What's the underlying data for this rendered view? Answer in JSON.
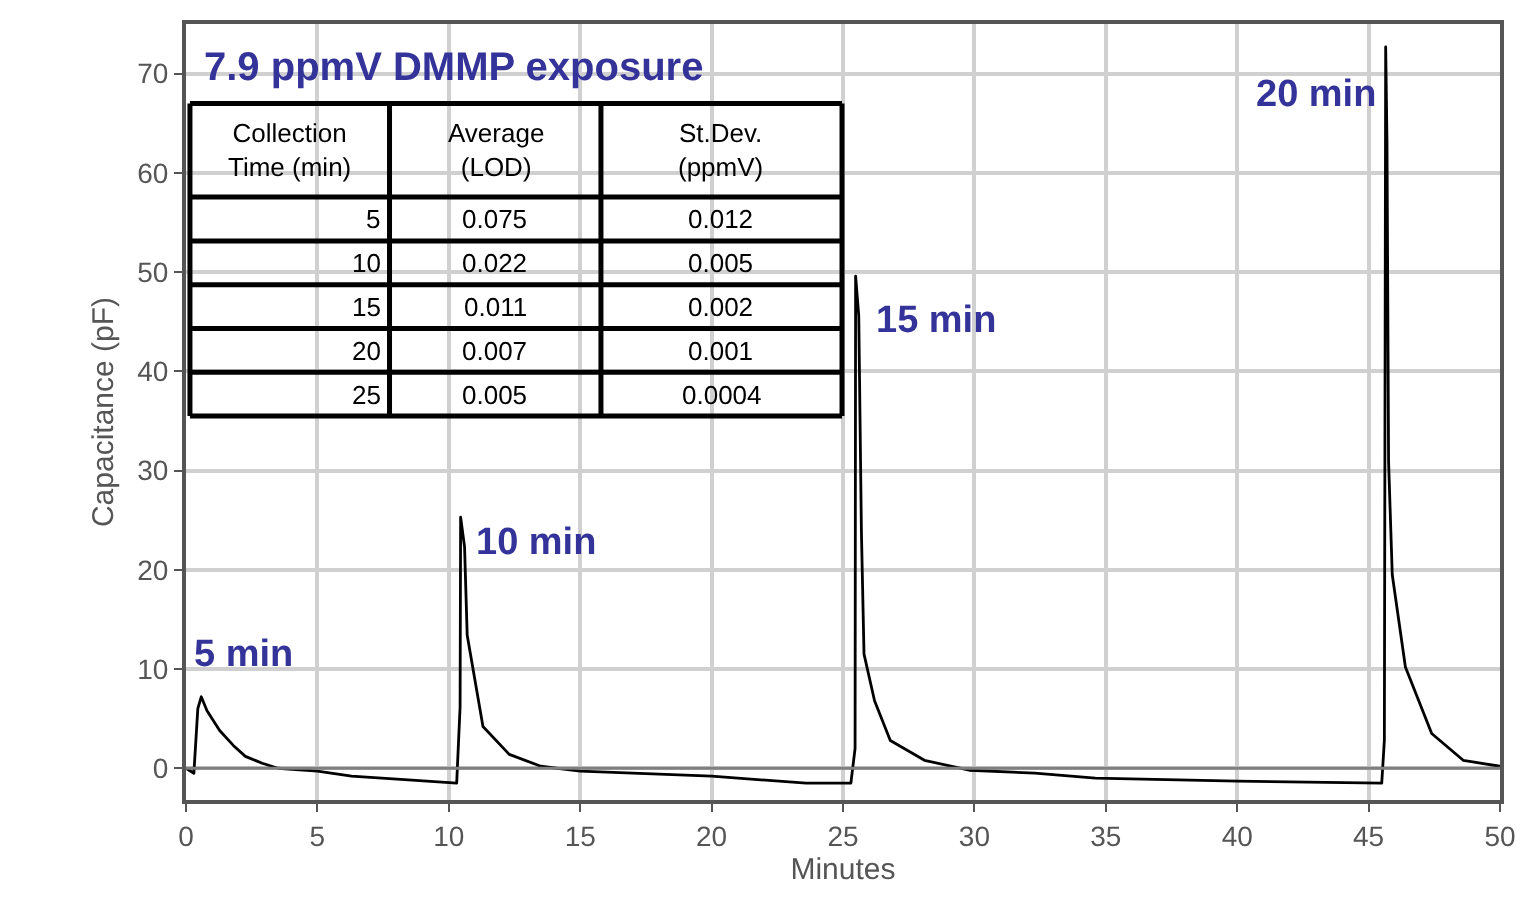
{
  "chart_data": {
    "type": "line",
    "title": "7.9 ppmV DMMP exposure",
    "xlabel": "Minutes",
    "ylabel": "Capacitance (pF)",
    "x": [
      0,
      0.3,
      0.45,
      0.58,
      0.8,
      1.28,
      1.8,
      2.26,
      2.9,
      3.5,
      5,
      6.3,
      8.6,
      10.3,
      10.43,
      10.45,
      10.6,
      10.7,
      11.3,
      12.3,
      13.5,
      15,
      20,
      23.6,
      25.3,
      25.46,
      25.48,
      25.6,
      25.7,
      25.8,
      26.2,
      26.8,
      28.1,
      29.8,
      32.3,
      34.6,
      40,
      45.5,
      45.6,
      45.65,
      45.7,
      45.76,
      45.9,
      46.4,
      47.4,
      48.6,
      50
    ],
    "series": [
      {
        "color": "#000000",
        "values": [
          0,
          -0.5,
          6.0,
          7.2,
          5.8,
          3.8,
          2.3,
          1.2,
          0.5,
          0,
          -0.3,
          -0.8,
          -1.2,
          -1.5,
          6.2,
          25.3,
          22.3,
          13.4,
          4.2,
          1.4,
          0.2,
          -0.3,
          -0.8,
          -1.5,
          -1.5,
          2.0,
          49.6,
          45.6,
          23.9,
          11.5,
          6.8,
          2.8,
          0.8,
          -0.2,
          -0.5,
          -1.0,
          -1.3,
          -1.5,
          2.8,
          72.7,
          63,
          30.9,
          19.5,
          10.2,
          3.5,
          0.8,
          0.2
        ]
      }
    ],
    "xlim": [
      0,
      50
    ],
    "xticks": [
      0,
      5,
      10,
      15,
      20,
      25,
      30,
      35,
      40,
      45,
      50
    ],
    "ylim": [
      -3.2,
      75
    ],
    "yticks": [
      0,
      10,
      20,
      30,
      40,
      50,
      60,
      70
    ],
    "grid": true,
    "marker": "none",
    "line_style": "solid",
    "ref_lines": [
      {
        "axis": "y",
        "value": 0,
        "color": "#7f7f7f"
      }
    ],
    "annotations": [
      "Collection\nTime (min)",
      "Average\n(LOD)",
      "St.Dev.\n(ppmV)",
      "5",
      "0.075",
      "0.012",
      "10",
      "0.022",
      "0.005",
      "15",
      "0.011",
      "0.002",
      "20",
      "0.007",
      "0.001",
      "25",
      "0.005",
      "0.0004",
      {
        "text": "5 min",
        "x": 0.58,
        "y": 7.2
      },
      {
        "text": "10 min",
        "x": 10.45,
        "y": 25.3
      },
      {
        "text": "15 min",
        "x": 25.48,
        "y": 49.6
      },
      {
        "text": "20 min",
        "x": 45.65,
        "y": 72.7
      }
    ]
  }
}
